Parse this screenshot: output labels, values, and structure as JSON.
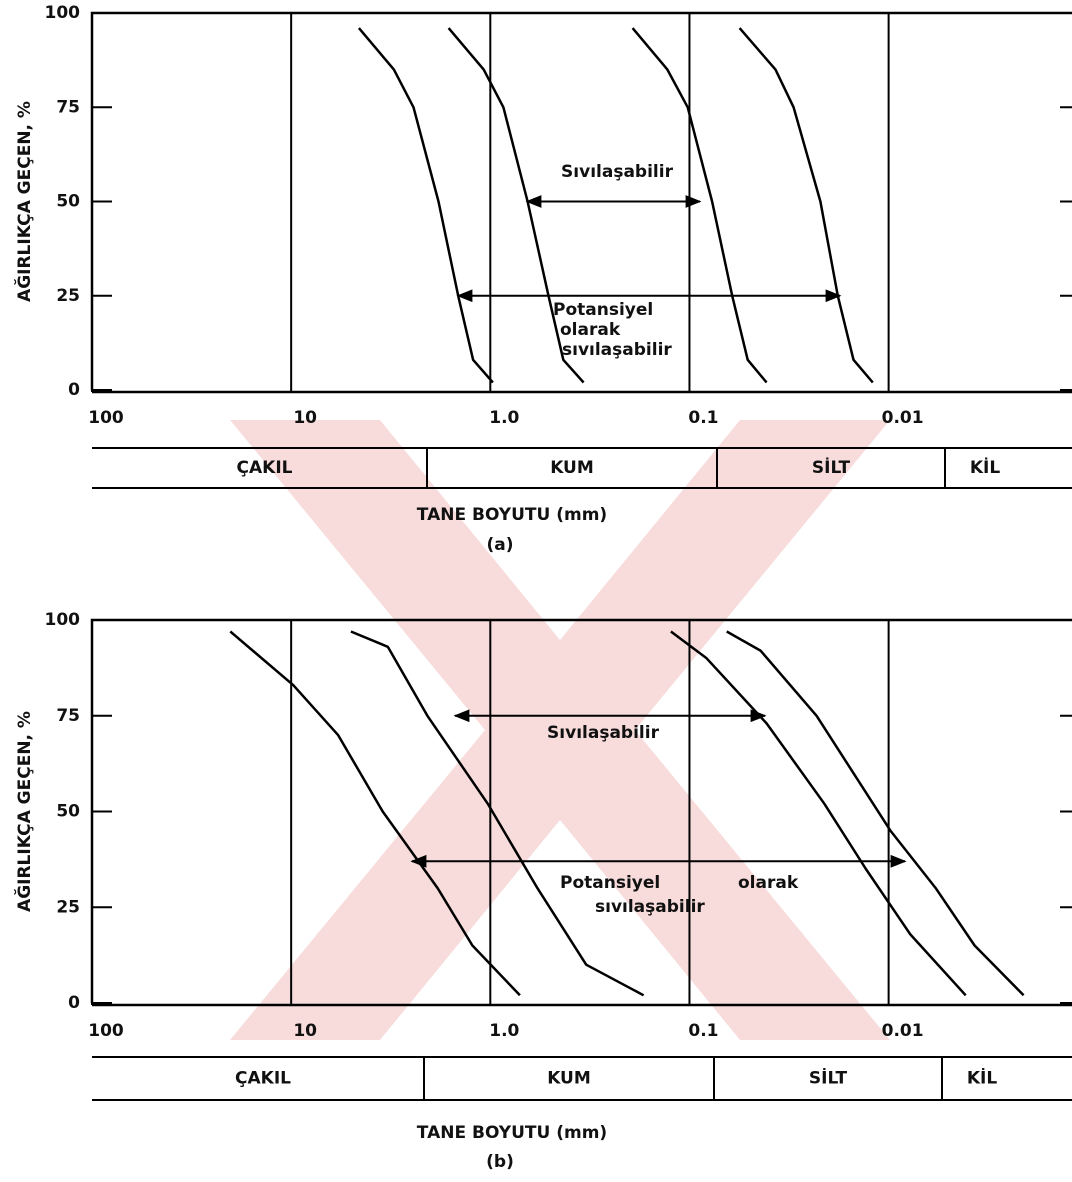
{
  "chart_data": [
    {
      "type": "line",
      "panel": "(a)",
      "ylabel": "AĞIRLIKÇA GEÇEN, %",
      "xlabel": "TANE BOYUTU (mm)",
      "xlog": true,
      "xlim": [
        100,
        0.0012
      ],
      "ylim": [
        0,
        100
      ],
      "xticks": [
        100,
        10,
        {
          "value": 1,
          "label": "1.0"
        },
        0.1,
        0.01
      ],
      "yticks": [
        0,
        25,
        50,
        75,
        100
      ],
      "grid": true,
      "classes": [
        "ÇAKIL",
        "KUM",
        "SİLT",
        "KİL"
      ],
      "annotations": [
        "Sıvılaşabilir",
        "Potansiyel",
        "olarak",
        "sıvılaşabilir"
      ],
      "series": [
        {
          "color": "#000000",
          "x": [
            4.57,
            3.05,
            2.43,
            1.82,
            1.45,
            1.22,
            0.97
          ],
          "values": [
            96,
            85,
            75,
            50,
            25,
            8,
            2
          ]
        },
        {
          "color": "#000000",
          "x": [
            1.62,
            1.08,
            0.86,
            0.65,
            0.51,
            0.43,
            0.34
          ],
          "values": [
            96,
            85,
            75,
            50,
            25,
            8,
            2
          ]
        },
        {
          "color": "#000000",
          "x": [
            0.193,
            0.129,
            0.102,
            0.077,
            0.061,
            0.051,
            0.041
          ],
          "values": [
            96,
            85,
            75,
            50,
            25,
            8,
            2
          ]
        },
        {
          "color": "#000000",
          "x": [
            0.056,
            0.037,
            0.03,
            0.022,
            0.018,
            0.015,
            0.012
          ],
          "values": [
            96,
            85,
            75,
            50,
            25,
            8,
            2
          ]
        }
      ]
    },
    {
      "type": "line",
      "panel": "(b)",
      "ylabel": "AĞIRLIKÇA GEÇEN, %",
      "xlabel": "TANE BOYUTU (mm)",
      "xlog": true,
      "xlim": [
        100,
        0.0012
      ],
      "ylim": [
        0,
        100
      ],
      "xticks": [
        100,
        10,
        {
          "value": 1,
          "label": "1.0"
        },
        0.1,
        0.01
      ],
      "yticks": [
        0,
        25,
        50,
        75,
        100
      ],
      "grid": true,
      "classes": [
        "ÇAKIL",
        "KUM",
        "SİLT",
        "KİL"
      ],
      "annotations": [
        "Sıvılaşabilir",
        "Potansiyel",
        "olarak",
        "sıvılaşabilir"
      ],
      "series": [
        {
          "color": "#000000",
          "x": [
            20.2,
            9.77,
            5.82,
            3.47,
            1.84,
            1.23,
            0.71
          ],
          "values": [
            97,
            83,
            70,
            50,
            30,
            15,
            2
          ]
        },
        {
          "color": "#000000",
          "x": [
            5.01,
            3.27,
            2.07,
            1.03,
            0.58,
            0.33,
            0.17
          ],
          "values": [
            97,
            93,
            75,
            52,
            30,
            10,
            2
          ]
        },
        {
          "color": "#000000",
          "x": [
            0.124,
            0.082,
            0.041,
            0.021,
            0.013,
            0.0078,
            0.0041
          ],
          "values": [
            97,
            90,
            73,
            52,
            35,
            18,
            2
          ]
        },
        {
          "color": "#000000",
          "x": [
            0.065,
            0.044,
            0.023,
            0.0098,
            0.0058,
            0.0037,
            0.0021
          ],
          "values": [
            97,
            92,
            75,
            45,
            30,
            15,
            2
          ]
        }
      ]
    }
  ]
}
